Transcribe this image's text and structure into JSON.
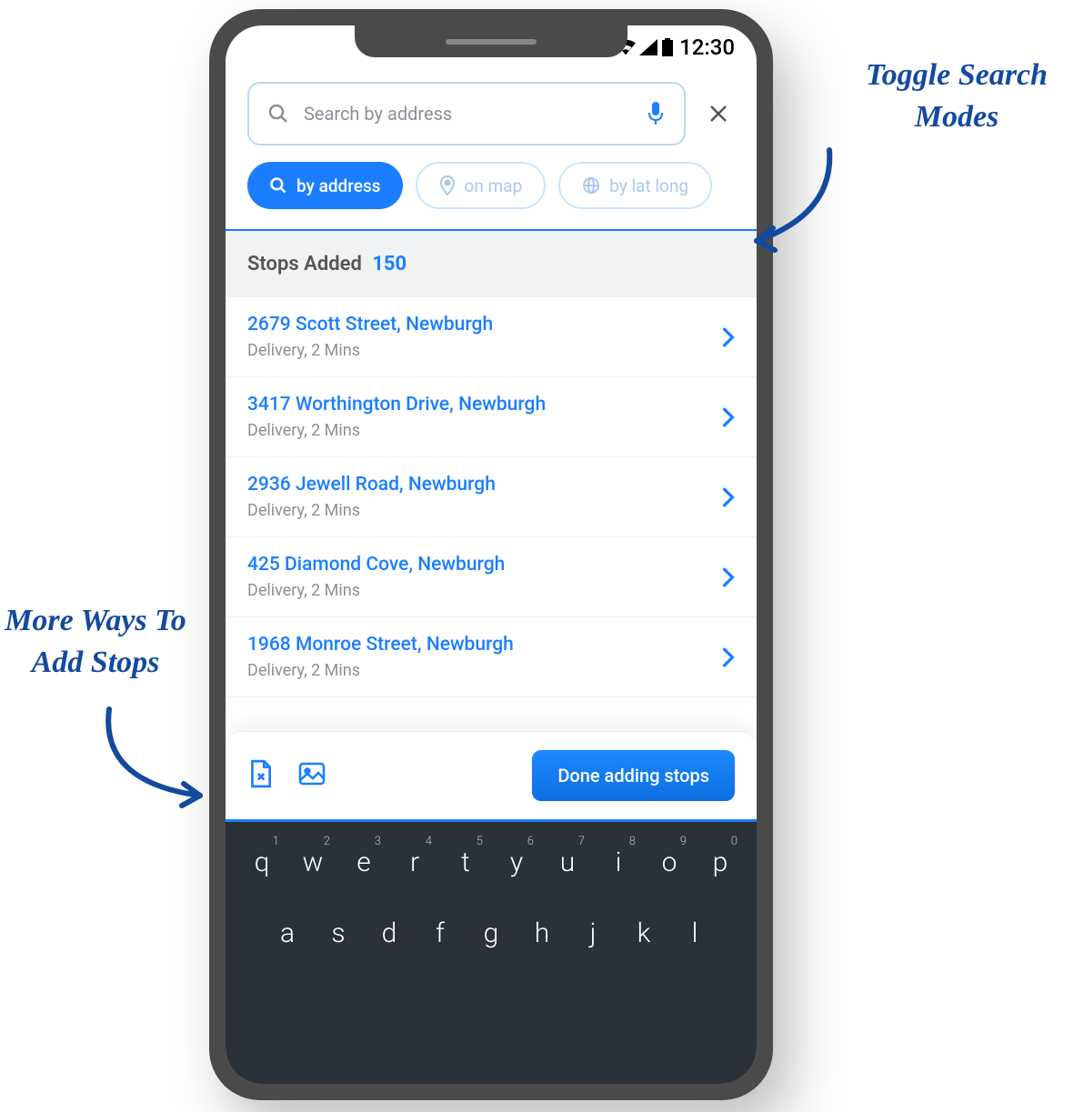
{
  "status": {
    "time": "12:30"
  },
  "search": {
    "placeholder": "Search by address"
  },
  "chips": {
    "address": "by address",
    "map": "on map",
    "latlong": "by lat long"
  },
  "stops_header": {
    "label": "Stops Added",
    "count": "150"
  },
  "stops": [
    {
      "address": "2679 Scott Street, Newburgh",
      "meta": "Delivery, 2 Mins"
    },
    {
      "address": "3417 Worthington Drive, Newburgh",
      "meta": "Delivery, 2 Mins"
    },
    {
      "address": "2936 Jewell Road, Newburgh",
      "meta": "Delivery, 2 Mins"
    },
    {
      "address": "425 Diamond Cove, Newburgh",
      "meta": "Delivery, 2 Mins"
    },
    {
      "address": "1968 Monroe Street, Newburgh",
      "meta": "Delivery, 2 Mins"
    }
  ],
  "bottom": {
    "done": "Done adding stops"
  },
  "annotations": {
    "right": "Toggle Search Modes",
    "left": "More Ways To Add Stops"
  },
  "keyboard": {
    "row1": [
      "q",
      "w",
      "e",
      "r",
      "t",
      "y",
      "u",
      "i",
      "o",
      "p"
    ],
    "row1_nums": [
      "1",
      "2",
      "3",
      "4",
      "5",
      "6",
      "7",
      "8",
      "9",
      "0"
    ],
    "row2": [
      "a",
      "s",
      "d",
      "f",
      "g",
      "h",
      "j",
      "k",
      "l"
    ]
  },
  "colors": {
    "primary": "#1a7eff",
    "chip_border": "#cce4fb",
    "chip_inactive_text": "#a9c9ea",
    "muted": "#8a8f98",
    "keyboard_bg": "#2b3138",
    "annotation": "#134a9e"
  }
}
